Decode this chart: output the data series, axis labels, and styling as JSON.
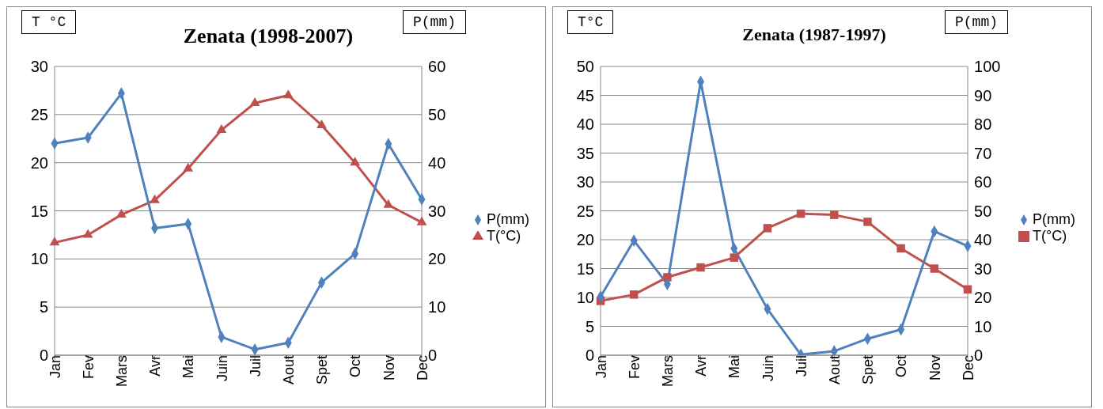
{
  "chart_data": [
    {
      "type": "line",
      "title": "Zenata (1998-2007)",
      "ylabel": "T °C",
      "y2label": "P(mm)",
      "categories": [
        "Jan",
        "Fev",
        "Mars",
        "Avr",
        "Mai",
        "Juin",
        "Juil",
        "Aout",
        "Spet",
        "Oct",
        "Nov",
        "Dec"
      ],
      "series": [
        {
          "name": "T(°C)",
          "color": "#c0504d",
          "marker": "triangle",
          "values": [
            11.7,
            12.5,
            14.6,
            16.1,
            19.4,
            23.4,
            26.2,
            27.0,
            23.9,
            20.0,
            15.6,
            13.8
          ]
        },
        {
          "name": "P(mm)",
          "color": "#4f81bd",
          "marker": "diamond",
          "axis": "y2",
          "values": [
            44,
            45.2,
            54.4,
            26.4,
            27.3,
            3.8,
            1.2,
            2.6,
            15.1,
            21.1,
            43.9,
            32.4
          ]
        }
      ],
      "ylim": [
        0,
        30
      ],
      "yticks": [
        0,
        5,
        10,
        15,
        20,
        25,
        30
      ],
      "y2lim": [
        0,
        60
      ],
      "y2ticks": [
        0,
        10,
        20,
        30,
        40,
        50,
        60
      ],
      "grid": "y",
      "legend": "right"
    },
    {
      "type": "line",
      "title": "Zenata (1987-1997)",
      "ylabel": "T°C",
      "y2label": "P(mm)",
      "categories": [
        "Jan",
        "Fev",
        "Mars",
        "Avr",
        "Mai",
        "Juin",
        "Juil",
        "Aout",
        "Spet",
        "Oct",
        "Nov",
        "Dec"
      ],
      "series": [
        {
          "name": "T(°C)",
          "color": "#c0504d",
          "marker": "square",
          "values": [
            9.4,
            10.5,
            13.5,
            15.2,
            16.9,
            22.0,
            24.5,
            24.3,
            23.1,
            18.5,
            15.0,
            11.4
          ]
        },
        {
          "name": "P(mm)",
          "color": "#4f81bd",
          "marker": "diamond",
          "axis": "y2",
          "values": [
            20.3,
            39.7,
            24.6,
            94.7,
            37,
            16,
            0.2,
            1.4,
            5.7,
            8.9,
            42.9,
            37.8
          ]
        }
      ],
      "ylim": [
        0,
        50
      ],
      "yticks": [
        0,
        5,
        10,
        15,
        20,
        25,
        30,
        35,
        40,
        45,
        50
      ],
      "y2lim": [
        0,
        100
      ],
      "y2ticks": [
        0,
        10,
        20,
        30,
        40,
        50,
        60,
        70,
        80,
        90,
        100
      ],
      "grid": "y",
      "legend": "right"
    }
  ]
}
